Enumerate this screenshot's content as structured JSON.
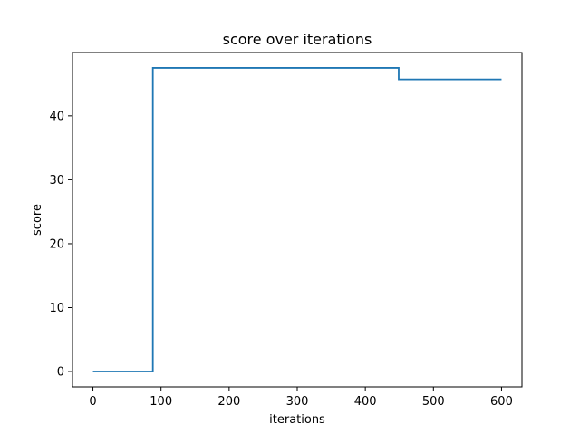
{
  "chart_data": {
    "type": "line",
    "title": "score over iterations",
    "xlabel": "iterations",
    "ylabel": "score",
    "xlim": [
      -30,
      630
    ],
    "ylim": [
      -2.4,
      49.9
    ],
    "xticks": [
      0,
      100,
      200,
      300,
      400,
      500,
      600
    ],
    "yticks": [
      0,
      10,
      20,
      30,
      40
    ],
    "grid": false,
    "legend": "none",
    "series": [
      {
        "color": "#1f77b4",
        "step": "post",
        "x": [
          0,
          88,
          449,
          600
        ],
        "y": [
          0,
          47.5,
          45.7,
          45.7
        ]
      }
    ]
  }
}
